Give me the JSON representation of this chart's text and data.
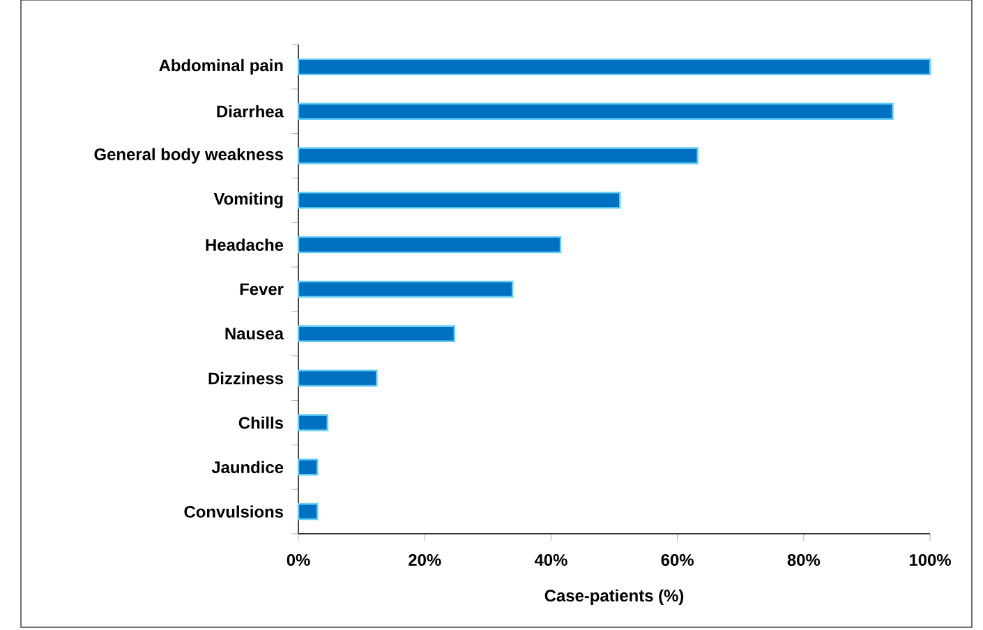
{
  "chart_data": {
    "type": "bar",
    "orientation": "horizontal",
    "xlabel": "Case-patients (%)",
    "categories": [
      "Abdominal pain",
      "Diarrhea",
      "General body weakness",
      "Vomiting",
      "Headache",
      "Fever",
      "Nausea",
      "Dizziness",
      "Chills",
      "Jaundice",
      "Convulsions"
    ],
    "values": [
      100,
      94.1,
      63.2,
      50.9,
      41.5,
      33.9,
      24.7,
      12.4,
      4.6,
      3.0,
      3.0
    ],
    "color": "#0070c0",
    "xlim": [
      0,
      100
    ],
    "xticks": [
      {
        "value": 0,
        "label": "0%"
      },
      {
        "value": 20,
        "label": "20%"
      },
      {
        "value": 40,
        "label": "40%"
      },
      {
        "value": 60,
        "label": "60%"
      },
      {
        "value": 80,
        "label": "80%"
      },
      {
        "value": 100,
        "label": "100%"
      }
    ]
  }
}
